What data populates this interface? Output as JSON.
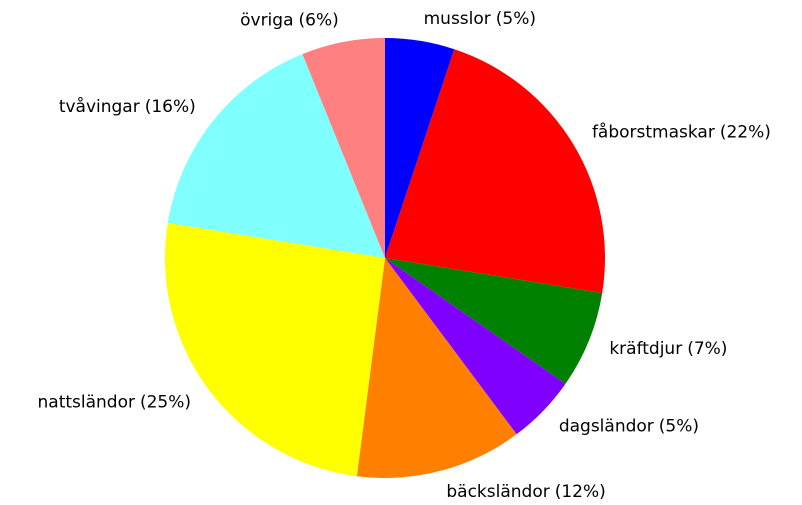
{
  "chart_data": {
    "type": "pie",
    "categories": [
      "musslor",
      "fåborstmaskar",
      "kräftdjur",
      "dagsländor",
      "bäcksländor",
      "nattsländor",
      "tvåvingar",
      "övriga"
    ],
    "values": [
      5,
      22,
      7,
      5,
      12,
      25,
      16,
      6
    ],
    "value_labels": [
      "(5%)",
      "(22%)",
      "(7%)",
      "(5%)",
      "(12%)",
      "(25%)",
      "(16%)",
      "(6%)"
    ],
    "colors": [
      "#0000ff",
      "#ff0000",
      "#008000",
      "#8000ff",
      "#ff8000",
      "#ffff00",
      "#80ffff",
      "#ff8080"
    ]
  }
}
